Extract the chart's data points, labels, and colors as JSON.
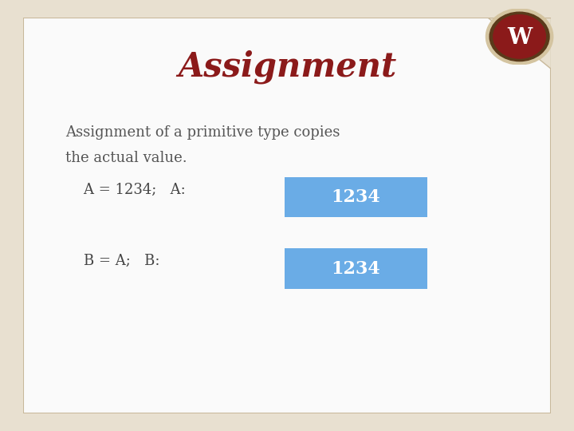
{
  "title": "Assignment",
  "title_color": "#8B1A1A",
  "title_fontsize": 30,
  "body_text_line1": "Assignment of a primitive type copies",
  "body_text_line2": "the actual value.",
  "code_line1": "    A = 1234;   A:",
  "code_line2": "    B = A;   B:",
  "box1_value": "1234",
  "box2_value": "1234",
  "box_color": "#6AACE6",
  "box_edge_color": "#4A8CC6",
  "box_text_color": "#FFFFFF",
  "body_text_color": "#555555",
  "code_text_color": "#444444",
  "slide_bg": "#E8E0D0",
  "content_bg": "#FAFAFA",
  "border_color": "#C8B89A",
  "figsize": [
    7.2,
    5.4
  ],
  "dpi": 100
}
